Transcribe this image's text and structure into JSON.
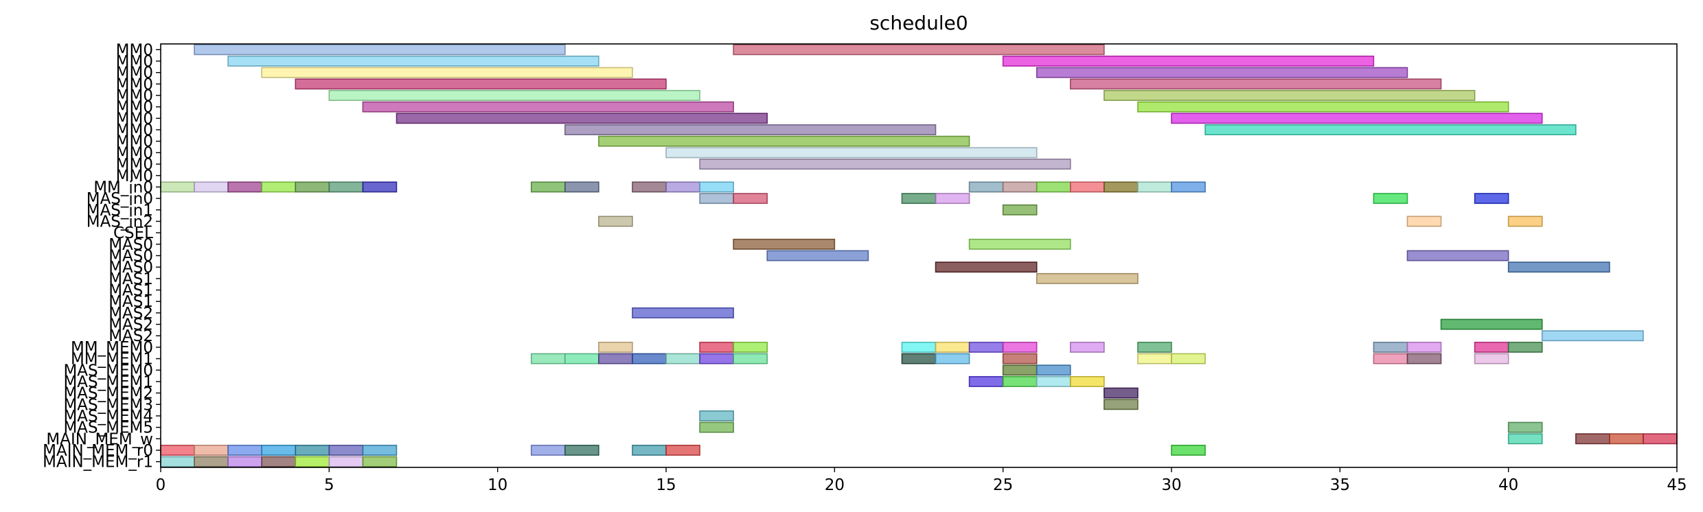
{
  "chart_data": {
    "type": "gantt",
    "title": "schedule0",
    "xlabel": "",
    "ylabel": "",
    "xlim": [
      0,
      45
    ],
    "x_ticks": [
      0,
      5,
      10,
      15,
      20,
      25,
      30,
      35,
      40,
      45
    ],
    "grid": false,
    "rows": [
      "MM0",
      "MM0",
      "MM0",
      "MM0",
      "MM0",
      "MM0",
      "MM0",
      "MM0",
      "MM0",
      "MM0",
      "MM0",
      "MM0",
      "MM_in0",
      "MAS_in0",
      "MAS_in1",
      "MAS_in2",
      "CSEL",
      "MAS0",
      "MAS0",
      "MAS0",
      "MAS1",
      "MAS1",
      "MAS1",
      "MAS2",
      "MAS2",
      "MAS2",
      "MM_MEM0",
      "MM_MEM1",
      "MAS_MEM0",
      "MAS_MEM1",
      "MAS_MEM2",
      "MAS_MEM3",
      "MAS_MEM4",
      "MAS_MEM5",
      "MAIN_MEM_w",
      "MAIN_MEM_r0",
      "MAIN_MEM_r1"
    ],
    "bars": [
      {
        "row": 0,
        "start": 1,
        "end": 12,
        "color": "#8fb0e3"
      },
      {
        "row": 0,
        "start": 17,
        "end": 28,
        "color": "#cc5c74"
      },
      {
        "row": 1,
        "start": 2,
        "end": 13,
        "color": "#7fd3f2"
      },
      {
        "row": 1,
        "start": 25,
        "end": 36,
        "color": "#e21fd6"
      },
      {
        "row": 2,
        "start": 3,
        "end": 14,
        "color": "#fff18f"
      },
      {
        "row": 2,
        "start": 26,
        "end": 37,
        "color": "#9a45c2"
      },
      {
        "row": 3,
        "start": 4,
        "end": 15,
        "color": "#c2306e"
      },
      {
        "row": 3,
        "start": 27,
        "end": 38,
        "color": "#c64a79"
      },
      {
        "row": 4,
        "start": 5,
        "end": 16,
        "color": "#9df0ad"
      },
      {
        "row": 4,
        "start": 28,
        "end": 39,
        "color": "#a6c85a"
      },
      {
        "row": 5,
        "start": 6,
        "end": 17,
        "color": "#b840a0"
      },
      {
        "row": 5,
        "start": 29,
        "end": 40,
        "color": "#8ee12f"
      },
      {
        "row": 6,
        "start": 7,
        "end": 18,
        "color": "#702883"
      },
      {
        "row": 6,
        "start": 30,
        "end": 41,
        "color": "#d61de3"
      },
      {
        "row": 7,
        "start": 12,
        "end": 23,
        "color": "#8a76a8"
      },
      {
        "row": 7,
        "start": 31,
        "end": 42,
        "color": "#2ed9b9"
      },
      {
        "row": 8,
        "start": 13,
        "end": 24,
        "color": "#7dbb3c"
      },
      {
        "row": 9,
        "start": 15,
        "end": 26,
        "color": "#c4e0ea"
      },
      {
        "row": 10,
        "start": 16,
        "end": 27,
        "color": "#a994ba"
      },
      {
        "row": 12,
        "start": 0,
        "end": 1,
        "color": "#b7dd9a"
      },
      {
        "row": 12,
        "start": 1,
        "end": 2,
        "color": "#d3c4ed"
      },
      {
        "row": 12,
        "start": 2,
        "end": 3,
        "color": "#9a3a8b"
      },
      {
        "row": 12,
        "start": 3,
        "end": 4,
        "color": "#8fe63a"
      },
      {
        "row": 12,
        "start": 4,
        "end": 5,
        "color": "#5e9a3e"
      },
      {
        "row": 12,
        "start": 5,
        "end": 6,
        "color": "#4e9670"
      },
      {
        "row": 12,
        "start": 6,
        "end": 7,
        "color": "#2a25b8"
      },
      {
        "row": 12,
        "start": 11,
        "end": 12,
        "color": "#5fab42"
      },
      {
        "row": 12,
        "start": 12,
        "end": 13,
        "color": "#5a6a8c"
      },
      {
        "row": 12,
        "start": 14,
        "end": 15,
        "color": "#7d5668"
      },
      {
        "row": 12,
        "start": 15,
        "end": 16,
        "color": "#9c86d8"
      },
      {
        "row": 12,
        "start": 16,
        "end": 17,
        "color": "#6ccff4"
      },
      {
        "row": 12,
        "start": 24,
        "end": 25,
        "color": "#7ba2b8"
      },
      {
        "row": 12,
        "start": 25,
        "end": 26,
        "color": "#b98e8e"
      },
      {
        "row": 12,
        "start": 26,
        "end": 27,
        "color": "#74d43a"
      },
      {
        "row": 12,
        "start": 27,
        "end": 28,
        "color": "#f0606a"
      },
      {
        "row": 12,
        "start": 28,
        "end": 29,
        "color": "#7c6e1c"
      },
      {
        "row": 12,
        "start": 29,
        "end": 30,
        "color": "#a4e3cf"
      },
      {
        "row": 12,
        "start": 30,
        "end": 31,
        "color": "#4a8fe0"
      },
      {
        "row": 13,
        "start": 16,
        "end": 17,
        "color": "#8aa6c8"
      },
      {
        "row": 13,
        "start": 17,
        "end": 18,
        "color": "#d44e6e"
      },
      {
        "row": 13,
        "start": 22,
        "end": 23,
        "color": "#3e8a5a"
      },
      {
        "row": 13,
        "start": 23,
        "end": 24,
        "color": "#d494ec"
      },
      {
        "row": 13,
        "start": 36,
        "end": 37,
        "color": "#27e04a"
      },
      {
        "row": 13,
        "start": 39,
        "end": 40,
        "color": "#1a2ae0"
      },
      {
        "row": 14,
        "start": 25,
        "end": 26,
        "color": "#6aa43e"
      },
      {
        "row": 15,
        "start": 13,
        "end": 14,
        "color": "#b8b08a"
      },
      {
        "row": 15,
        "start": 37,
        "end": 38,
        "color": "#fdc990"
      },
      {
        "row": 15,
        "start": 40,
        "end": 41,
        "color": "#fbbe52"
      },
      {
        "row": 17,
        "start": 17,
        "end": 20,
        "color": "#855530"
      },
      {
        "row": 17,
        "start": 24,
        "end": 27,
        "color": "#8bdd55"
      },
      {
        "row": 18,
        "start": 18,
        "end": 21,
        "color": "#5a78c4"
      },
      {
        "row": 18,
        "start": 37,
        "end": 40,
        "color": "#6e5ebc"
      },
      {
        "row": 19,
        "start": 23,
        "end": 26,
        "color": "#5a1a1c"
      },
      {
        "row": 19,
        "start": 40,
        "end": 43,
        "color": "#3a6eae"
      },
      {
        "row": 20,
        "start": 26,
        "end": 29,
        "color": "#c8ad70"
      },
      {
        "row": 23,
        "start": 14,
        "end": 17,
        "color": "#5055cc"
      },
      {
        "row": 24,
        "start": 38,
        "end": 41,
        "color": "#1e9b34"
      },
      {
        "row": 25,
        "start": 41,
        "end": 44,
        "color": "#78c6ee"
      },
      {
        "row": 26,
        "start": 13,
        "end": 14,
        "color": "#e0c28a"
      },
      {
        "row": 26,
        "start": 16,
        "end": 17,
        "color": "#e0365a"
      },
      {
        "row": 26,
        "start": 17,
        "end": 18,
        "color": "#8be83a"
      },
      {
        "row": 26,
        "start": 22,
        "end": 23,
        "color": "#4ef2f0"
      },
      {
        "row": 26,
        "start": 23,
        "end": 24,
        "color": "#f8e060"
      },
      {
        "row": 26,
        "start": 24,
        "end": 25,
        "color": "#6a48e0"
      },
      {
        "row": 26,
        "start": 25,
        "end": 26,
        "color": "#e23cd6"
      },
      {
        "row": 26,
        "start": 27,
        "end": 28,
        "color": "#d288ee"
      },
      {
        "row": 26,
        "start": 29,
        "end": 30,
        "color": "#4aa868"
      },
      {
        "row": 26,
        "start": 36,
        "end": 37,
        "color": "#7898b8"
      },
      {
        "row": 26,
        "start": 37,
        "end": 38,
        "color": "#d686ea"
      },
      {
        "row": 26,
        "start": 39,
        "end": 40,
        "color": "#de2a8e"
      },
      {
        "row": 26,
        "start": 40,
        "end": 41,
        "color": "#3e8a4a"
      },
      {
        "row": 27,
        "start": 11,
        "end": 12,
        "color": "#6ee0a0"
      },
      {
        "row": 27,
        "start": 12,
        "end": 13,
        "color": "#5ee4a0"
      },
      {
        "row": 27,
        "start": 13,
        "end": 14,
        "color": "#5e4aa0"
      },
      {
        "row": 27,
        "start": 14,
        "end": 15,
        "color": "#2a5ab8"
      },
      {
        "row": 27,
        "start": 15,
        "end": 16,
        "color": "#86dcc6"
      },
      {
        "row": 27,
        "start": 16,
        "end": 17,
        "color": "#6a3ae0"
      },
      {
        "row": 27,
        "start": 17,
        "end": 18,
        "color": "#5ee094"
      },
      {
        "row": 27,
        "start": 22,
        "end": 23,
        "color": "#1e4a3a"
      },
      {
        "row": 27,
        "start": 23,
        "end": 24,
        "color": "#5ab8e8"
      },
      {
        "row": 27,
        "start": 25,
        "end": 26,
        "color": "#b04a42"
      },
      {
        "row": 27,
        "start": 29,
        "end": 30,
        "color": "#f0f27a"
      },
      {
        "row": 27,
        "start": 30,
        "end": 31,
        "color": "#d6f060"
      },
      {
        "row": 27,
        "start": 36,
        "end": 37,
        "color": "#e87aa0"
      },
      {
        "row": 27,
        "start": 37,
        "end": 38,
        "color": "#7a5068"
      },
      {
        "row": 27,
        "start": 39,
        "end": 40,
        "color": "#e4b0e0"
      },
      {
        "row": 28,
        "start": 25,
        "end": 26,
        "color": "#5a7a2a"
      },
      {
        "row": 28,
        "start": 26,
        "end": 27,
        "color": "#3a86c8"
      },
      {
        "row": 29,
        "start": 24,
        "end": 25,
        "color": "#4a2ee0"
      },
      {
        "row": 29,
        "start": 25,
        "end": 26,
        "color": "#3ed43e"
      },
      {
        "row": 29,
        "start": 26,
        "end": 27,
        "color": "#8ee0ea"
      },
      {
        "row": 29,
        "start": 27,
        "end": 28,
        "color": "#f0da2a"
      },
      {
        "row": 30,
        "start": 28,
        "end": 29,
        "color": "#3a1a5a"
      },
      {
        "row": 31,
        "start": 28,
        "end": 29,
        "color": "#6a7a40"
      },
      {
        "row": 32,
        "start": 16,
        "end": 17,
        "color": "#5ab4c0"
      },
      {
        "row": 33,
        "start": 16,
        "end": 17,
        "color": "#6ab04a"
      },
      {
        "row": 33,
        "start": 40,
        "end": 41,
        "color": "#5aaa62"
      },
      {
        "row": 34,
        "start": 40,
        "end": 41,
        "color": "#3ad4a8"
      },
      {
        "row": 34,
        "start": 42,
        "end": 43,
        "color": "#7a2a2a"
      },
      {
        "row": 34,
        "start": 43,
        "end": 44,
        "color": "#c8442a"
      },
      {
        "row": 34,
        "start": 44,
        "end": 45,
        "color": "#d42a4a"
      },
      {
        "row": 35,
        "start": 0,
        "end": 1,
        "color": "#ec4c5a"
      },
      {
        "row": 35,
        "start": 1,
        "end": 2,
        "color": "#e8a088"
      },
      {
        "row": 35,
        "start": 2,
        "end": 3,
        "color": "#5a86e8"
      },
      {
        "row": 35,
        "start": 3,
        "end": 4,
        "color": "#2a9ee0"
      },
      {
        "row": 35,
        "start": 4,
        "end": 5,
        "color": "#2a8aa0"
      },
      {
        "row": 35,
        "start": 5,
        "end": 6,
        "color": "#5a5ab8"
      },
      {
        "row": 35,
        "start": 6,
        "end": 7,
        "color": "#3aa0d0"
      },
      {
        "row": 35,
        "start": 11,
        "end": 12,
        "color": "#7a8ee0"
      },
      {
        "row": 35,
        "start": 12,
        "end": 13,
        "color": "#2a6a5a"
      },
      {
        "row": 35,
        "start": 14,
        "end": 15,
        "color": "#3a98a8"
      },
      {
        "row": 35,
        "start": 15,
        "end": 16,
        "color": "#d83a3a"
      },
      {
        "row": 35,
        "start": 30,
        "end": 31,
        "color": "#2ed42e"
      },
      {
        "row": 36,
        "start": 0,
        "end": 1,
        "color": "#7ed0d0"
      },
      {
        "row": 36,
        "start": 1,
        "end": 2,
        "color": "#8a7a5a"
      },
      {
        "row": 36,
        "start": 2,
        "end": 3,
        "color": "#b87ae8"
      },
      {
        "row": 36,
        "start": 3,
        "end": 4,
        "color": "#7a5050"
      },
      {
        "row": 36,
        "start": 4,
        "end": 5,
        "color": "#9ae82a"
      },
      {
        "row": 36,
        "start": 5,
        "end": 6,
        "color": "#d8b4ec"
      },
      {
        "row": 36,
        "start": 6,
        "end": 7,
        "color": "#7ab840"
      }
    ]
  }
}
